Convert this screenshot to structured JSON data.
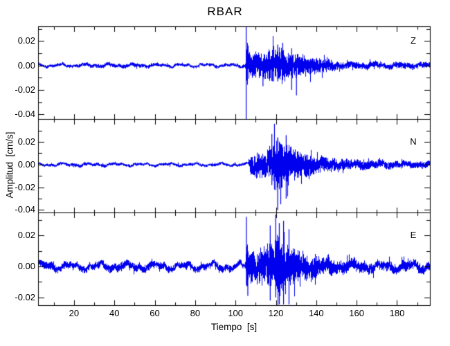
{
  "chart_data": {
    "type": "line",
    "title": "RBAR",
    "xlabel": "Tiempo  [s]",
    "ylabel": "Amplitud  [cm/s]",
    "background": "#ffffff",
    "frame_color": "#000000",
    "trace_color": "#0000ee",
    "legend": "none",
    "grid": false,
    "xlim": [
      2.2,
      196.3
    ],
    "x_major_ticks": [
      20,
      40,
      60,
      80,
      100,
      120,
      140,
      160,
      180
    ],
    "x_tick_labels": [
      "20",
      "40",
      "60",
      "80",
      "100",
      "120",
      "140",
      "160",
      "180"
    ],
    "x_minor_ticks": [
      10,
      30,
      50,
      70,
      90,
      110,
      130,
      150,
      170,
      190
    ],
    "event_onset_s": 105,
    "envelope_units": "pairs of [time_s, half_amplitude_cm_per_s] describing the visible waveform envelope",
    "spike_units": "triples of [time_s, peak_up, peak_down] for distinct large spikes",
    "panels": [
      {
        "label": "Z",
        "ylim": [
          -0.044,
          0.032
        ],
        "y_major_ticks": [
          0.02,
          0.0,
          -0.02,
          -0.04
        ],
        "y_tick_labels": [
          "0.02",
          "0.00",
          "-0.02",
          "-0.04"
        ],
        "y_minor_ticks": [
          0.03,
          0.01,
          -0.01,
          -0.03
        ],
        "lf_amps": [
          0.0008,
          0.0005
        ],
        "lf_periods": [
          12,
          5.7
        ],
        "envelope": [
          [
            0,
            0.0012
          ],
          [
            30,
            0.0014
          ],
          [
            45,
            0.0016
          ],
          [
            60,
            0.0013
          ],
          [
            75,
            0.0011
          ],
          [
            90,
            0.0012
          ],
          [
            105.0,
            0.0013
          ],
          [
            105.3,
            0.026
          ],
          [
            106.5,
            0.012
          ],
          [
            110,
            0.009
          ],
          [
            114,
            0.011
          ],
          [
            118,
            0.013
          ],
          [
            121,
            0.011
          ],
          [
            123,
            0.014
          ],
          [
            126,
            0.011
          ],
          [
            130,
            0.009
          ],
          [
            134,
            0.0075
          ],
          [
            140,
            0.006
          ],
          [
            147,
            0.0045
          ],
          [
            150,
            0.003
          ],
          [
            160,
            0.0026
          ],
          [
            175,
            0.0024
          ],
          [
            196.5,
            0.0022
          ]
        ],
        "spikes": [
          [
            105.3,
            0.0315,
            -0.046
          ],
          [
            113.6,
            0.004,
            -0.017
          ],
          [
            118.9,
            0.016,
            -0.013
          ],
          [
            120.9,
            0.017,
            -0.013
          ],
          [
            123.4,
            0.0185,
            -0.012
          ],
          [
            127.8,
            0.014,
            -0.02
          ],
          [
            130.2,
            0.006,
            -0.0245
          ]
        ]
      },
      {
        "label": "N",
        "ylim": [
          -0.042,
          0.04
        ],
        "y_major_ticks": [
          0.02,
          0.0,
          -0.02,
          -0.04
        ],
        "y_tick_labels": [
          "0.02",
          "0.00",
          "-0.02",
          "-0.04"
        ],
        "y_minor_ticks": [
          0.03,
          0.01,
          -0.01,
          -0.03
        ],
        "lf_amps": [
          0.0008,
          0.0005
        ],
        "lf_periods": [
          13,
          6.1
        ],
        "envelope": [
          [
            0,
            0.0011
          ],
          [
            15,
            0.0013
          ],
          [
            25,
            0.0016
          ],
          [
            32,
            0.0014
          ],
          [
            45,
            0.0012
          ],
          [
            60,
            0.0011
          ],
          [
            70,
            0.0013
          ],
          [
            80,
            0.0012
          ],
          [
            95,
            0.0011
          ],
          [
            106.5,
            0.0012
          ],
          [
            107.5,
            0.009
          ],
          [
            111,
            0.011
          ],
          [
            114,
            0.01
          ],
          [
            117,
            0.014
          ],
          [
            119,
            0.021
          ],
          [
            121,
            0.023
          ],
          [
            124,
            0.017
          ],
          [
            126,
            0.019
          ],
          [
            128,
            0.013
          ],
          [
            131,
            0.012
          ],
          [
            134,
            0.01
          ],
          [
            138,
            0.008
          ],
          [
            143,
            0.0065
          ],
          [
            150,
            0.005
          ],
          [
            158,
            0.0042
          ],
          [
            168,
            0.0035
          ],
          [
            180,
            0.003
          ],
          [
            196.5,
            0.0028
          ]
        ],
        "spikes": [
          [
            118.0,
            0.027,
            -0.018
          ],
          [
            119.3,
            0.036,
            -0.022
          ],
          [
            120.9,
            0.024,
            -0.04
          ],
          [
            122.4,
            0.018,
            -0.035
          ],
          [
            125.1,
            0.026,
            -0.03
          ]
        ]
      },
      {
        "label": "E",
        "ylim": [
          -0.025,
          0.035
        ],
        "y_major_ticks": [
          0.02,
          0.0,
          -0.02
        ],
        "y_tick_labels": [
          "0.02",
          "0.00",
          "-0.02"
        ],
        "y_minor_ticks": [
          0.03,
          0.01,
          -0.01
        ],
        "lf_amps": [
          0.0015,
          0.0008
        ],
        "lf_periods": [
          14,
          6.2
        ],
        "envelope": [
          [
            0,
            0.002
          ],
          [
            6,
            0.0026
          ],
          [
            12,
            0.0022
          ],
          [
            20,
            0.002
          ],
          [
            28,
            0.0024
          ],
          [
            35,
            0.0021
          ],
          [
            42,
            0.0026
          ],
          [
            50,
            0.0024
          ],
          [
            57,
            0.0026
          ],
          [
            63,
            0.0022
          ],
          [
            72,
            0.0019
          ],
          [
            82,
            0.002
          ],
          [
            92,
            0.0022
          ],
          [
            101,
            0.002
          ],
          [
            105.0,
            0.002
          ],
          [
            105.4,
            0.014
          ],
          [
            107,
            0.0095
          ],
          [
            110,
            0.01
          ],
          [
            113,
            0.011
          ],
          [
            116,
            0.013
          ],
          [
            118,
            0.016
          ],
          [
            120,
            0.018
          ],
          [
            122,
            0.016
          ],
          [
            124,
            0.017
          ],
          [
            126,
            0.014
          ],
          [
            128,
            0.012
          ],
          [
            131,
            0.01
          ],
          [
            134,
            0.0085
          ],
          [
            138,
            0.0075
          ],
          [
            142,
            0.0065
          ],
          [
            147,
            0.0055
          ],
          [
            150,
            0.0042
          ],
          [
            160,
            0.0036
          ],
          [
            175,
            0.0032
          ],
          [
            196.5,
            0.003
          ]
        ],
        "spikes": [
          [
            105.4,
            0.032,
            -0.012
          ],
          [
            106.1,
            0.01,
            -0.019
          ],
          [
            117.2,
            0.0265,
            -0.022
          ],
          [
            119.9,
            0.0335,
            -0.02
          ],
          [
            121.7,
            0.028,
            -0.0245
          ],
          [
            123.8,
            0.0295,
            -0.0245
          ],
          [
            126.5,
            0.024,
            -0.0245
          ]
        ]
      }
    ]
  }
}
